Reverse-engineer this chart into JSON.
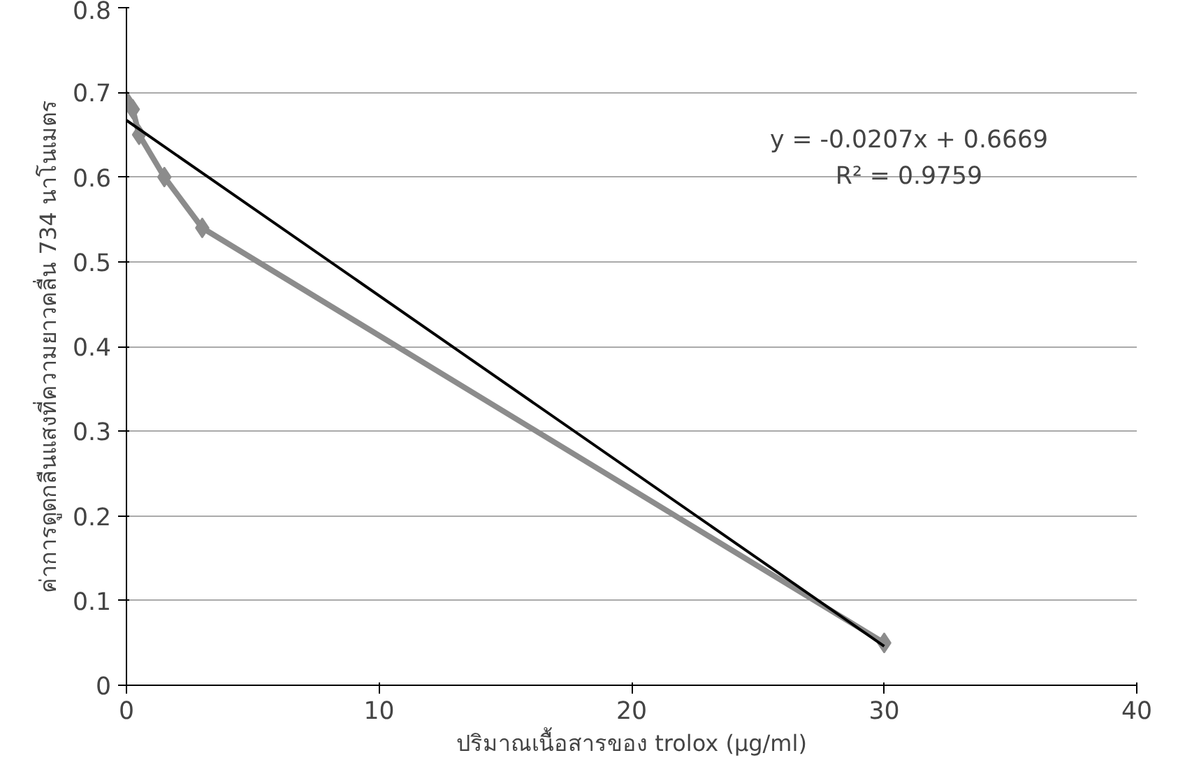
{
  "chart_data": {
    "type": "line",
    "xlabel": "ปริมาณเนื้อสารของ trolox (µg/ml)",
    "ylabel": "ค่าการดูดกลืนแสงที่ความยาวคลื่น 734 นาโนเมตร",
    "series": [
      {
        "color": "#8c8c8c",
        "marker": "diamond",
        "x": [
          0,
          0.25,
          0.5,
          1.5,
          3,
          30
        ],
        "values": [
          0.69,
          0.68,
          0.65,
          0.6,
          0.54,
          0.05
        ]
      },
      {
        "type": "line",
        "color": "#000000",
        "marker": "none",
        "x": [
          0,
          30
        ],
        "values": [
          0.667,
          0.046
        ]
      }
    ],
    "annotations": [
      "y = -0.0207x + 0.6669",
      "R² = 0.9759"
    ],
    "xlim": [
      0,
      40
    ],
    "xticks": [
      0,
      10,
      20,
      30,
      40
    ],
    "ylim": [
      0,
      0.8
    ],
    "yticks": [
      0,
      0.1,
      0.2,
      0.3,
      0.4,
      0.5,
      0.6,
      0.7,
      0.8
    ],
    "grid": "y"
  }
}
